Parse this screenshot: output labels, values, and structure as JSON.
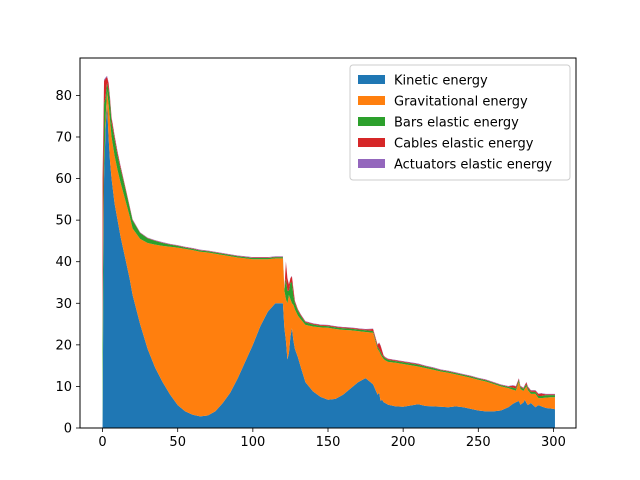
{
  "chart_data": {
    "type": "area",
    "stacked": true,
    "title": "",
    "xlabel": "",
    "ylabel": "",
    "xlim": [
      -15,
      315
    ],
    "ylim": [
      0,
      89
    ],
    "x_ticks": [
      0,
      50,
      100,
      150,
      200,
      250,
      300
    ],
    "y_ticks": [
      0,
      10,
      20,
      30,
      40,
      50,
      60,
      70,
      80
    ],
    "grid": false,
    "legend_position": "upper right",
    "x": [
      0,
      1,
      2,
      3,
      4,
      5,
      6,
      8,
      10,
      12,
      15,
      18,
      20,
      25,
      30,
      35,
      40,
      45,
      50,
      55,
      60,
      65,
      70,
      75,
      80,
      85,
      90,
      95,
      100,
      105,
      110,
      115,
      120,
      121,
      122,
      123,
      124,
      125,
      126,
      127,
      128,
      130,
      132,
      135,
      140,
      145,
      150,
      155,
      160,
      165,
      170,
      175,
      180,
      183,
      184,
      185,
      186,
      187,
      188,
      190,
      195,
      200,
      205,
      210,
      215,
      220,
      225,
      230,
      235,
      240,
      245,
      250,
      255,
      260,
      265,
      270,
      273,
      275,
      277,
      278,
      280,
      281,
      282,
      283,
      285,
      288,
      290,
      292,
      295,
      298,
      300,
      301
    ],
    "series": [
      {
        "name": "Kinetic energy",
        "color": "#1f77b4",
        "values": [
          0,
          60,
          72,
          78,
          70,
          64,
          60,
          54,
          50,
          46,
          41,
          36,
          32,
          25,
          19,
          14.5,
          11,
          8,
          5.5,
          4,
          3.2,
          2.8,
          3,
          4,
          6,
          8.5,
          12,
          16,
          20,
          24.5,
          28,
          30,
          30,
          24,
          21,
          16.5,
          18,
          22,
          24,
          21,
          19,
          17,
          14.5,
          11,
          8.8,
          7.5,
          6.8,
          7,
          8,
          9.5,
          11,
          12,
          10.5,
          8,
          8.5,
          6.5,
          6.8,
          6.2,
          6,
          5.6,
          5.2,
          5.1,
          5.4,
          5.7,
          5.3,
          5.2,
          5.1,
          5,
          5.2,
          5,
          4.6,
          4.2,
          4,
          4,
          4.2,
          5,
          5.8,
          6.2,
          6.5,
          5.6,
          6.1,
          6.8,
          6,
          5.5,
          6,
          5,
          5.5,
          5.2,
          4.8,
          4.7,
          4.6,
          4.5
        ]
      },
      {
        "name": "Gravitational energy",
        "color": "#ff7f0e",
        "values": [
          0,
          0,
          2.5,
          3,
          8,
          10,
          10,
          11.5,
          12,
          13,
          14,
          15,
          16,
          20.5,
          25.5,
          29.6,
          32.8,
          35.6,
          37.9,
          39.1,
          39.6,
          39.6,
          39.2,
          37.9,
          35.6,
          32.8,
          29,
          24.8,
          20.6,
          16.1,
          12.6,
          10.8,
          10.8,
          9,
          10,
          13.5,
          14,
          9,
          6,
          8.6,
          9.5,
          10,
          11.6,
          13.8,
          15.6,
          16.7,
          17.3,
          16.8,
          15.6,
          14,
          12.3,
          11.1,
          12.4,
          11,
          10,
          11.2,
          10.3,
          10.4,
          10.3,
          10.3,
          10.5,
          10.3,
          9.7,
          9.1,
          9.1,
          8.8,
          8.5,
          8.3,
          7.7,
          7.5,
          7.5,
          7.4,
          7.2,
          6.6,
          5.8,
          4.6,
          3.4,
          2.8,
          4.6,
          3.8,
          2.8,
          2.7,
          4,
          3.6,
          2.2,
          3.2,
          1.7,
          2,
          2.5,
          2.7,
          2.8,
          2.9
        ]
      },
      {
        "name": "Bars elastic energy",
        "color": "#2ca02c",
        "values": [
          20,
          18,
          5,
          2,
          3.5,
          4.5,
          3.5,
          4,
          3.5,
          3.3,
          2.8,
          2.1,
          1.9,
          1.4,
          1.1,
          0.9,
          0.7,
          0.5,
          0.4,
          0.3,
          0.3,
          0.3,
          0.3,
          0.3,
          0.3,
          0.3,
          0.3,
          0.3,
          0.3,
          0.3,
          0.3,
          0.3,
          0.3,
          0.3,
          5,
          3,
          1,
          4,
          5,
          2.3,
          1.5,
          1.2,
          0.8,
          0.6,
          0.5,
          0.4,
          0.4,
          0.4,
          0.4,
          0.4,
          0.4,
          0.4,
          0.4,
          0.5,
          0.5,
          0.6,
          0.5,
          0.5,
          0.5,
          0.5,
          0.4,
          0.4,
          0.4,
          0.4,
          0.4,
          0.4,
          0.3,
          0.3,
          0.3,
          0.3,
          0.3,
          0.3,
          0.3,
          0.3,
          0.3,
          0.3,
          0.5,
          0.5,
          0.5,
          0.5,
          0.5,
          0.5,
          0.5,
          0.5,
          0.5,
          0.5,
          0.5,
          0.5,
          0.6,
          0.5,
          0.5,
          0.5
        ]
      },
      {
        "name": "Cables elastic energy",
        "color": "#d62728",
        "values": [
          40,
          5.5,
          4.5,
          1.5,
          1.5,
          0.8,
          1.2,
          0.8,
          0.8,
          0.6,
          0.4,
          0.3,
          0.2,
          0.1,
          0.1,
          0.1,
          0.1,
          0.1,
          0.1,
          0.1,
          0.1,
          0.1,
          0.1,
          0.1,
          0.1,
          0.1,
          0.1,
          0.1,
          0.1,
          0.1,
          0.1,
          0.1,
          0.1,
          0.1,
          4,
          3,
          1.5,
          1,
          1.5,
          1.5,
          0.5,
          0.3,
          0.3,
          0.2,
          0.2,
          0.2,
          0.2,
          0.2,
          0.2,
          0.2,
          0.2,
          0.2,
          0.5,
          0.5,
          1.5,
          1.5,
          1,
          0.3,
          0.2,
          0.2,
          0.2,
          0.2,
          0.2,
          0.2,
          0.1,
          0.1,
          0.1,
          0.1,
          0.1,
          0.1,
          0.1,
          0.1,
          0.1,
          0.1,
          0.1,
          0.1,
          0.5,
          0.5,
          0.3,
          0.2,
          0.2,
          0.3,
          0.5,
          0.3,
          0.3,
          0.3,
          0.5,
          0.6,
          0.2,
          0.2,
          0.2,
          0.2
        ]
      },
      {
        "name": "Actuators elastic energy",
        "color": "#9467bd",
        "values": [
          0,
          0.3,
          0.3,
          0.2,
          0.2,
          0.2,
          0.2,
          0.2,
          0.2,
          0.2,
          0.1,
          0.1,
          0.1,
          0.1,
          0.1,
          0.1,
          0.1,
          0.1,
          0.1,
          0.1,
          0.1,
          0.1,
          0.1,
          0.1,
          0.1,
          0.1,
          0.1,
          0.1,
          0.1,
          0.1,
          0.1,
          0.1,
          0.1,
          0.1,
          0.1,
          0.1,
          0.1,
          0.1,
          0.1,
          0.1,
          0.1,
          0.1,
          0.1,
          0.1,
          0.1,
          0.1,
          0.1,
          0.1,
          0.1,
          0.1,
          0.1,
          0.1,
          0.1,
          0.1,
          0.1,
          0.1,
          0.1,
          0.1,
          0.1,
          0.1,
          0.1,
          0.1,
          0.1,
          0.1,
          0.1,
          0.1,
          0.1,
          0.1,
          0.1,
          0.1,
          0.1,
          0.1,
          0.1,
          0.1,
          0.1,
          0.1,
          0.1,
          0.1,
          0.1,
          0.1,
          0.1,
          0.1,
          0.1,
          0.1,
          0.1,
          0.1,
          0.1,
          0.1,
          0.1,
          0.1,
          0.1,
          0.1
        ]
      }
    ]
  }
}
